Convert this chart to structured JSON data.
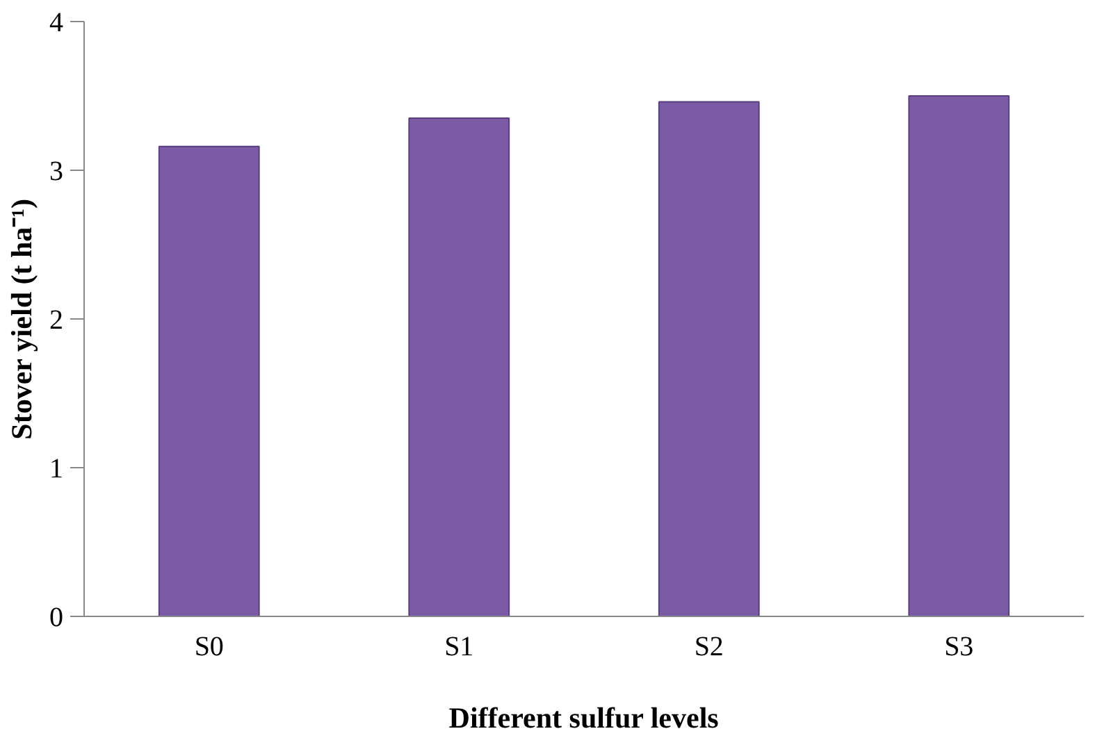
{
  "chart_data": {
    "type": "bar",
    "xlabel": "Different sulfur levels",
    "ylabel": "Stover yield (t ha⁻¹)",
    "categories": [
      "S0",
      "S1",
      "S2",
      "S3"
    ],
    "values": [
      3.16,
      3.35,
      3.46,
      3.5
    ],
    "color": "#7b5aa6",
    "ylim": [
      0,
      4
    ],
    "yticks": [
      0,
      1,
      2,
      3,
      4
    ],
    "grid": false
  }
}
